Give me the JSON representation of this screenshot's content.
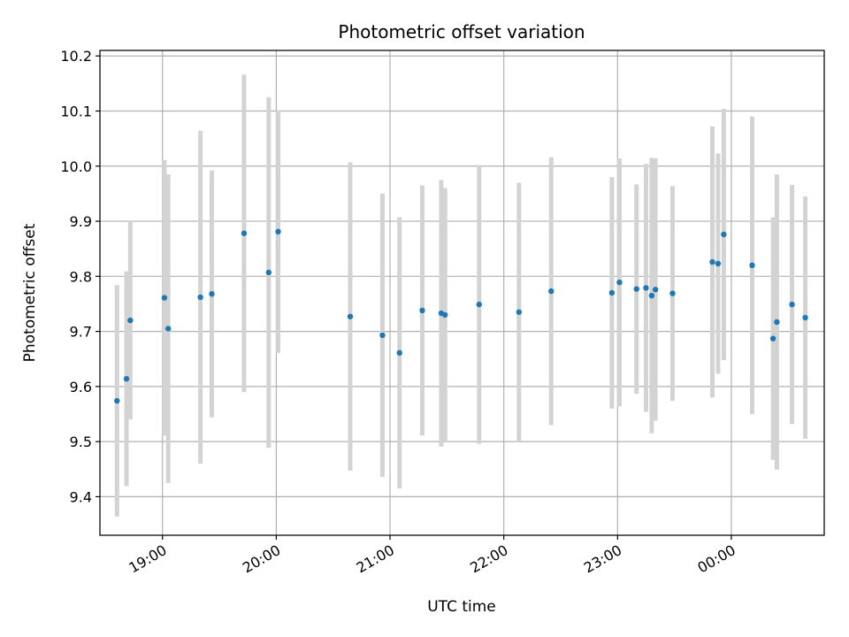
{
  "chart_data": {
    "type": "scatter",
    "title": "Photometric offset variation",
    "xlabel": "UTC time",
    "ylabel": "Photometric offset",
    "grid": true,
    "x_date_start": "2000-01-01",
    "xlim": [
      "18:27",
      "00:49"
    ],
    "ylim": [
      9.33,
      10.21
    ],
    "y_ticks": [
      9.4,
      9.5,
      9.6,
      9.7,
      9.8,
      9.9,
      10.0,
      10.1,
      10.2
    ],
    "y_tick_labels": [
      "9.4",
      "9.5",
      "9.6",
      "9.7",
      "9.8",
      "9.9",
      "10.0",
      "10.1",
      "10.2"
    ],
    "x_ticks": [
      "19:00",
      "20:00",
      "21:00",
      "22:00",
      "23:00",
      "00:00"
    ],
    "x_tick_labels": [
      "19:00",
      "20:00",
      "21:00",
      "22:00",
      "23:00",
      "00:00"
    ],
    "colors": {
      "point": "#1f77b4",
      "errorbar": "#d3d3d3",
      "grid": "#b0b0b0"
    },
    "points": [
      {
        "x": "18:36",
        "y": 9.574,
        "err": 0.21
      },
      {
        "x": "18:41",
        "y": 9.614,
        "err": 0.195
      },
      {
        "x": "18:43",
        "y": 9.72,
        "err": 0.18
      },
      {
        "x": "19:01",
        "y": 9.761,
        "err": 0.25
      },
      {
        "x": "19:03",
        "y": 9.705,
        "err": 0.28
      },
      {
        "x": "19:20",
        "y": 9.762,
        "err": 0.302
      },
      {
        "x": "19:26",
        "y": 9.768,
        "err": 0.224
      },
      {
        "x": "19:43",
        "y": 9.878,
        "err": 0.288
      },
      {
        "x": "19:56",
        "y": 9.807,
        "err": 0.318
      },
      {
        "x": "20:01",
        "y": 9.881,
        "err": 0.22
      },
      {
        "x": "20:39",
        "y": 9.727,
        "err": 0.28
      },
      {
        "x": "20:56",
        "y": 9.693,
        "err": 0.257
      },
      {
        "x": "21:05",
        "y": 9.661,
        "err": 0.246
      },
      {
        "x": "21:17",
        "y": 9.738,
        "err": 0.227
      },
      {
        "x": "21:27",
        "y": 9.733,
        "err": 0.242
      },
      {
        "x": "21:29",
        "y": 9.73,
        "err": 0.23
      },
      {
        "x": "21:47",
        "y": 9.749,
        "err": 0.253
      },
      {
        "x": "22:08",
        "y": 9.735,
        "err": 0.235
      },
      {
        "x": "22:25",
        "y": 9.773,
        "err": 0.243
      },
      {
        "x": "22:57",
        "y": 9.77,
        "err": 0.21
      },
      {
        "x": "23:01",
        "y": 9.789,
        "err": 0.225
      },
      {
        "x": "23:10",
        "y": 9.777,
        "err": 0.19
      },
      {
        "x": "23:15",
        "y": 9.779,
        "err": 0.225
      },
      {
        "x": "23:18",
        "y": 9.765,
        "err": 0.25
      },
      {
        "x": "23:20",
        "y": 9.776,
        "err": 0.238
      },
      {
        "x": "23:29",
        "y": 9.769,
        "err": 0.195
      },
      {
        "x": "23:50",
        "y": 9.826,
        "err": 0.246
      },
      {
        "x": "23:53",
        "y": 9.823,
        "err": 0.2
      },
      {
        "x": "23:56",
        "y": 9.876,
        "err": 0.228
      },
      {
        "x": "00:11",
        "y": 9.82,
        "err": 0.27
      },
      {
        "x": "00:22",
        "y": 9.687,
        "err": 0.22
      },
      {
        "x": "00:24",
        "y": 9.717,
        "err": 0.268
      },
      {
        "x": "00:32",
        "y": 9.749,
        "err": 0.217
      },
      {
        "x": "00:39",
        "y": 9.725,
        "err": 0.22
      }
    ]
  }
}
